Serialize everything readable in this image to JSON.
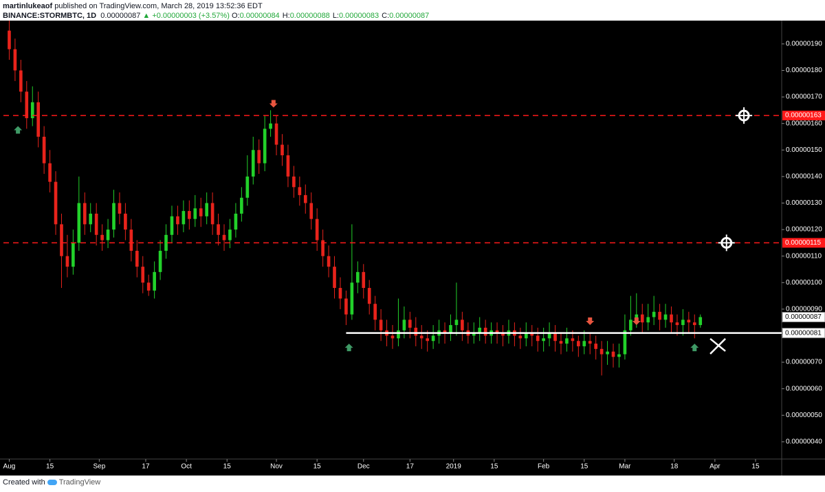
{
  "header": {
    "author": "martinlukeaof",
    "published": "published on TradingView.com, March 28, 2019 13:52:36 EDT",
    "symbol": "BINANCE:STORMBTC, 1D",
    "price": "0.00000087",
    "change": "▲ +0.00000003 (+3.57%)",
    "ohlc": [
      {
        "label": "O:",
        "value": "0.00000084"
      },
      {
        "label": "H:",
        "value": "0.00000088"
      },
      {
        "label": "L:",
        "value": "0.00000083"
      },
      {
        "label": "C:",
        "value": "0.00000087"
      }
    ]
  },
  "footer": {
    "text": "Created with",
    "brand": "TradingView"
  },
  "chart_data": {
    "type": "candlestick",
    "up_color": "#22d12a",
    "down_color": "#e8231b",
    "x": [
      0,
      2,
      4,
      6,
      8,
      10,
      12,
      14,
      16,
      18,
      20,
      22,
      24,
      26,
      28,
      30,
      32,
      34,
      36,
      38,
      40,
      42,
      44,
      46,
      48,
      50,
      52,
      54,
      56,
      58,
      60,
      62,
      64,
      66,
      68,
      70,
      72,
      74,
      76,
      78,
      80,
      82,
      84,
      86,
      88,
      90,
      92,
      94,
      96,
      98,
      100,
      102,
      104,
      106,
      108,
      110,
      112,
      114,
      116,
      118,
      120,
      122,
      124,
      126,
      128,
      130,
      132,
      134,
      136,
      138,
      140,
      142,
      144,
      146,
      148,
      150,
      152,
      154,
      156,
      158,
      160,
      162,
      164,
      166,
      168,
      170,
      172,
      174,
      176,
      178,
      180,
      182,
      184,
      186,
      188,
      190,
      192,
      194,
      196,
      198,
      200,
      202,
      204,
      206,
      208,
      210,
      212,
      214,
      216,
      218,
      220,
      222,
      224,
      226,
      228,
      230,
      232,
      234,
      236,
      238
    ],
    "open": [
      1.95e-06,
      1.88e-06,
      1.8e-06,
      1.72e-06,
      1.62e-06,
      1.68e-06,
      1.55e-06,
      1.45e-06,
      1.38e-06,
      1.22e-06,
      1.1e-06,
      1.06e-06,
      1.15e-06,
      1.3e-06,
      1.22e-06,
      1.26e-06,
      1.18e-06,
      1.16e-06,
      1.2e-06,
      1.3e-06,
      1.26e-06,
      1.2e-06,
      1.12e-06,
      1.06e-06,
      1e-06,
      9.7e-07,
      1.04e-06,
      1.12e-06,
      1.18e-06,
      1.25e-06,
      1.22e-06,
      1.27e-06,
      1.24e-06,
      1.28e-06,
      1.25e-06,
      1.3e-06,
      1.22e-06,
      1.18e-06,
      1.16e-06,
      1.2e-06,
      1.26e-06,
      1.32e-06,
      1.4e-06,
      1.5e-06,
      1.45e-06,
      1.58e-06,
      1.6e-06,
      1.52e-06,
      1.48e-06,
      1.4e-06,
      1.36e-06,
      1.33e-06,
      1.3e-06,
      1.24e-06,
      1.16e-06,
      1.1e-06,
      1.06e-06,
      9.8e-07,
      9.4e-07,
      8.8e-07,
      1e-06,
      1.04e-06,
      9.8e-07,
      9.2e-07,
      8.6e-07,
      8.2e-07,
      8e-07,
      7.9e-07,
      8.2e-07,
      8.6e-07,
      8.3e-07,
      8e-07,
      7.9e-07,
      7.8e-07,
      8e-07,
      8.2e-07,
      8.1e-07,
      8.4e-07,
      8.6e-07,
      8.2e-07,
      8e-07,
      8.1e-07,
      8.3e-07,
      8e-07,
      8.2e-07,
      8.1e-07,
      8e-07,
      8.2e-07,
      8e-07,
      7.9e-07,
      8.1e-07,
      8e-07,
      7.8e-07,
      7.9e-07,
      8.1e-07,
      7.8e-07,
      7.7e-07,
      7.9e-07,
      7.8e-07,
      7.6e-07,
      7.8e-07,
      7.7e-07,
      7.5e-07,
      7.3e-07,
      7.4e-07,
      7.2e-07,
      7.3e-07,
      8.2e-07,
      8.6e-07,
      8.8e-07,
      8.5e-07,
      8.7e-07,
      8.9e-07,
      8.6e-07,
      8.8e-07,
      8.5e-07,
      8.4e-07,
      8.6e-07,
      8.5e-07,
      8.4e-07
    ],
    "high": [
      1.99e-06,
      1.92e-06,
      1.84e-06,
      1.76e-06,
      1.74e-06,
      1.72e-06,
      1.59e-06,
      1.5e-06,
      1.42e-06,
      1.26e-06,
      1.18e-06,
      1.2e-06,
      1.4e-06,
      1.34e-06,
      1.3e-06,
      1.3e-06,
      1.22e-06,
      1.24e-06,
      1.35e-06,
      1.34e-06,
      1.3e-06,
      1.24e-06,
      1.16e-06,
      1.1e-06,
      1.03e-06,
      1.08e-06,
      1.16e-06,
      1.22e-06,
      1.29e-06,
      1.29e-06,
      1.31e-06,
      1.31e-06,
      1.33e-06,
      1.32e-06,
      1.34e-06,
      1.34e-06,
      1.26e-06,
      1.22e-06,
      1.24e-06,
      1.3e-06,
      1.36e-06,
      1.48e-06,
      1.55e-06,
      1.54e-06,
      1.63e-06,
      1.65e-06,
      1.63e-06,
      1.56e-06,
      1.52e-06,
      1.44e-06,
      1.4e-06,
      1.37e-06,
      1.34e-06,
      1.28e-06,
      1.2e-06,
      1.14e-06,
      1.1e-06,
      1.02e-06,
      9.7e-07,
      1.22e-06,
      1.08e-06,
      1.07e-06,
      1.01e-06,
      9.5e-07,
      9e-07,
      8.6e-07,
      8.4e-07,
      9.4e-07,
      9.1e-07,
      8.9e-07,
      8.7e-07,
      8.4e-07,
      8.2e-07,
      8.4e-07,
      8.6e-07,
      8.5e-07,
      8.8e-07,
      1e-06,
      8.9e-07,
      8.5e-07,
      8.5e-07,
      8.7e-07,
      8.6e-07,
      8.5e-07,
      8.5e-07,
      8.4e-07,
      8.6e-07,
      8.5e-07,
      8.3e-07,
      8.5e-07,
      8.4e-07,
      8.3e-07,
      8.3e-07,
      8.5e-07,
      8.4e-07,
      8.1e-07,
      8.3e-07,
      8.2e-07,
      8e-07,
      8.2e-07,
      8.1e-07,
      8e-07,
      7.8e-07,
      7.8e-07,
      7.7e-07,
      7.7e-07,
      8.8e-07,
      9.5e-07,
      9.6e-07,
      9.2e-07,
      9.2e-07,
      9.5e-07,
      9.2e-07,
      9.2e-07,
      9.1e-07,
      8.8e-07,
      9e-07,
      8.9e-07,
      8.8e-07,
      8.8e-07
    ],
    "low": [
      1.84e-06,
      1.76e-06,
      1.68e-06,
      1.58e-06,
      1.59e-06,
      1.51e-06,
      1.41e-06,
      1.34e-06,
      1.18e-06,
      9.8e-07,
      1.02e-06,
      1.03e-06,
      1.12e-06,
      1.18e-06,
      1.19e-06,
      1.14e-06,
      1.12e-06,
      1.13e-06,
      1.17e-06,
      1.22e-06,
      1.16e-06,
      1.08e-06,
      1.02e-06,
      9.6e-07,
      9.5e-07,
      9.4e-07,
      1.01e-06,
      1.09e-06,
      1.15e-06,
      1.18e-06,
      1.19e-06,
      1.2e-06,
      1.21e-06,
      1.21e-06,
      1.22e-06,
      1.18e-06,
      1.14e-06,
      1.12e-06,
      1.13e-06,
      1.17e-06,
      1.23e-06,
      1.29e-06,
      1.37e-06,
      1.41e-06,
      1.42e-06,
      1.55e-06,
      1.48e-06,
      1.44e-06,
      1.36e-06,
      1.32e-06,
      1.29e-06,
      1.26e-06,
      1.2e-06,
      1.12e-06,
      1.06e-06,
      1.02e-06,
      9.4e-07,
      9e-07,
      8.4e-07,
      8.6e-07,
      9.6e-07,
      9.4e-07,
      8.8e-07,
      8.2e-07,
      7.8e-07,
      7.6e-07,
      7.5e-07,
      7.6e-07,
      7.9e-07,
      7.9e-07,
      7.6e-07,
      7.5e-07,
      7.4e-07,
      7.5e-07,
      7.7e-07,
      7.7e-07,
      7.8e-07,
      8e-07,
      7.8e-07,
      7.7e-07,
      7.7e-07,
      7.8e-07,
      7.7e-07,
      7.7e-07,
      7.7e-07,
      7.6e-07,
      7.7e-07,
      7.6e-07,
      7.5e-07,
      7.6e-07,
      7.6e-07,
      7.4e-07,
      7.4e-07,
      7.6e-07,
      7.4e-07,
      7.3e-07,
      7.4e-07,
      7.4e-07,
      7.2e-07,
      7.3e-07,
      7.3e-07,
      7.1e-07,
      6.5e-07,
      6.9e-07,
      6.8e-07,
      6.8e-07,
      7.1e-07,
      8e-07,
      8.3e-07,
      8.1e-07,
      8.2e-07,
      8.4e-07,
      8.2e-07,
      8.3e-07,
      8.1e-07,
      8e-07,
      8e-07,
      8.1e-07,
      7.9e-07,
      8.3e-07
    ],
    "close": [
      1.88e-06,
      1.8e-06,
      1.72e-06,
      1.62e-06,
      1.68e-06,
      1.55e-06,
      1.45e-06,
      1.38e-06,
      1.22e-06,
      1.1e-06,
      1.06e-06,
      1.15e-06,
      1.3e-06,
      1.22e-06,
      1.26e-06,
      1.18e-06,
      1.16e-06,
      1.2e-06,
      1.3e-06,
      1.26e-06,
      1.2e-06,
      1.12e-06,
      1.06e-06,
      1e-06,
      9.7e-07,
      1.04e-06,
      1.12e-06,
      1.18e-06,
      1.25e-06,
      1.22e-06,
      1.27e-06,
      1.24e-06,
      1.28e-06,
      1.25e-06,
      1.3e-06,
      1.22e-06,
      1.18e-06,
      1.16e-06,
      1.2e-06,
      1.26e-06,
      1.32e-06,
      1.4e-06,
      1.5e-06,
      1.45e-06,
      1.58e-06,
      1.6e-06,
      1.52e-06,
      1.48e-06,
      1.4e-06,
      1.36e-06,
      1.33e-06,
      1.3e-06,
      1.24e-06,
      1.16e-06,
      1.1e-06,
      1.06e-06,
      9.8e-07,
      9.4e-07,
      8.8e-07,
      1e-06,
      1.04e-06,
      9.8e-07,
      9.2e-07,
      8.6e-07,
      8.2e-07,
      8e-07,
      7.9e-07,
      8.2e-07,
      8.6e-07,
      8.3e-07,
      8e-07,
      7.9e-07,
      7.8e-07,
      8e-07,
      8.2e-07,
      8.1e-07,
      8.4e-07,
      8.6e-07,
      8.2e-07,
      8e-07,
      8.1e-07,
      8.3e-07,
      8e-07,
      8.2e-07,
      8.1e-07,
      8e-07,
      8.2e-07,
      8e-07,
      7.9e-07,
      8.1e-07,
      8e-07,
      7.8e-07,
      7.9e-07,
      8.1e-07,
      7.8e-07,
      7.7e-07,
      7.9e-07,
      7.8e-07,
      7.6e-07,
      7.8e-07,
      7.7e-07,
      7.5e-07,
      7.3e-07,
      7.4e-07,
      7.2e-07,
      7.3e-07,
      8.2e-07,
      8.6e-07,
      8.8e-07,
      8.5e-07,
      8.7e-07,
      8.9e-07,
      8.6e-07,
      8.8e-07,
      8.5e-07,
      8.4e-07,
      8.6e-07,
      8.5e-07,
      8.4e-07,
      8.7e-07
    ],
    "xlim": [
      -2,
      266
    ],
    "xticks": [
      {
        "value": 0,
        "label": "Aug"
      },
      {
        "value": 14,
        "label": "15"
      },
      {
        "value": 31,
        "label": "Sep"
      },
      {
        "value": 47,
        "label": "17"
      },
      {
        "value": 61,
        "label": "Oct"
      },
      {
        "value": 75,
        "label": "15"
      },
      {
        "value": 92,
        "label": "Nov"
      },
      {
        "value": 106,
        "label": "15"
      },
      {
        "value": 122,
        "label": "Dec"
      },
      {
        "value": 138,
        "label": "17"
      },
      {
        "value": 153,
        "label": "2019"
      },
      {
        "value": 167,
        "label": "15"
      },
      {
        "value": 184,
        "label": "Feb"
      },
      {
        "value": 198,
        "label": "15"
      },
      {
        "value": 212,
        "label": "Mar"
      },
      {
        "value": 229,
        "label": "18"
      },
      {
        "value": 243,
        "label": "Apr"
      },
      {
        "value": 257,
        "label": "15"
      }
    ],
    "ylim": [
      3.35e-07,
      1.98e-06
    ],
    "yticks": [
      {
        "value": 4e-07,
        "label": "0.00000040"
      },
      {
        "value": 5e-07,
        "label": "0.00000050"
      },
      {
        "value": 6e-07,
        "label": "0.00000060"
      },
      {
        "value": 7e-07,
        "label": "0.00000070"
      },
      {
        "value": 8e-07,
        "label": "0.00000080"
      },
      {
        "value": 9e-07,
        "label": "0.00000090"
      },
      {
        "value": 1e-06,
        "label": "0.00000100"
      },
      {
        "value": 1.1e-06,
        "label": "0.00000110"
      },
      {
        "value": 1.2e-06,
        "label": "0.00000120"
      },
      {
        "value": 1.3e-06,
        "label": "0.00000130"
      },
      {
        "value": 1.4e-06,
        "label": "0.00000140"
      },
      {
        "value": 1.5e-06,
        "label": "0.00000150"
      },
      {
        "value": 1.6e-06,
        "label": "0.00000160"
      },
      {
        "value": 1.7e-06,
        "label": "0.00000170"
      },
      {
        "value": 1.8e-06,
        "label": "0.00000180"
      },
      {
        "value": 1.9e-06,
        "label": "0.00000190"
      }
    ],
    "hlines": [
      {
        "value": 1.63e-06,
        "label": "0.00000163",
        "color": "#ff1a1a",
        "style": "dashed"
      },
      {
        "value": 1.15e-06,
        "label": "0.00000115",
        "color": "#ff1a1a",
        "style": "dashed"
      },
      {
        "value": 8.1e-07,
        "label": "0.00000081",
        "color": "#ffffff",
        "style": "solid",
        "x_start": 116
      }
    ],
    "price_line": {
      "value": 8.7e-07,
      "label": "0.00000087"
    },
    "markers": [
      {
        "shape": "arrow-up",
        "x": 3,
        "y": 1.59e-06,
        "color": "#3f9a66"
      },
      {
        "shape": "arrow-down",
        "x": 91,
        "y": 1.66e-06,
        "color": "#e8553f"
      },
      {
        "shape": "arrow-up",
        "x": 117,
        "y": 7.7e-07,
        "color": "#3f9a66"
      },
      {
        "shape": "arrow-down",
        "x": 200,
        "y": 8.4e-07,
        "color": "#e8553f"
      },
      {
        "shape": "arrow-down",
        "x": 216,
        "y": 8.4e-07,
        "color": "#e8553f"
      },
      {
        "shape": "arrow-up",
        "x": 236,
        "y": 7.7e-07,
        "color": "#3f9a66"
      },
      {
        "shape": "target",
        "x": 253,
        "y": 1.63e-06,
        "color": "#ffffff"
      },
      {
        "shape": "target",
        "x": 247,
        "y": 1.15e-06,
        "color": "#ffffff"
      },
      {
        "shape": "cross",
        "x": 244,
        "y": 7.6e-07,
        "color": "#ffffff"
      }
    ]
  }
}
